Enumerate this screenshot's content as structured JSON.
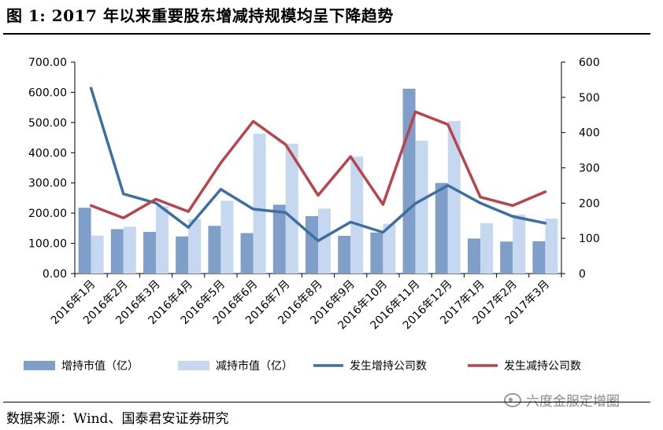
{
  "title": "图 1:  2017 年以来重要股东增减持规模均呈下降趋势",
  "source": "数据来源：Wind、国泰君安证券研究",
  "watermark": "六度金服定增圈",
  "colors": {
    "increase_bar": "#7f9fc9",
    "decrease_bar": "#c6d8ef",
    "increase_line": "#3d6fa1",
    "decrease_line": "#b9444c"
  },
  "chart_data": {
    "type": "bar",
    "categories": [
      "2016年1月",
      "2016年2月",
      "2016年3月",
      "2016年4月",
      "2016年5月",
      "2016年6月",
      "2016年7月",
      "2016年8月",
      "2016年9月",
      "2016年10月",
      "2016年11月",
      "2016年12月",
      "2017年1月",
      "2017年2月",
      "2017年3月"
    ],
    "series": [
      {
        "name": "增持市值（亿）",
        "type": "bar",
        "axis": "left",
        "values": [
          218,
          147,
          138,
          123,
          158,
          134,
          228,
          190,
          125,
          136,
          612,
          300,
          116,
          106,
          107
        ]
      },
      {
        "name": "减持市值（亿）",
        "type": "bar",
        "axis": "left",
        "values": [
          126,
          155,
          223,
          180,
          241,
          463,
          430,
          215,
          387,
          165,
          440,
          505,
          167,
          195,
          182
        ]
      },
      {
        "name": "发生增持公司数",
        "type": "line",
        "axis": "right",
        "values": [
          526,
          226,
          200,
          131,
          239,
          183,
          173,
          93,
          146,
          117,
          199,
          250,
          200,
          162,
          143
        ]
      },
      {
        "name": "发生减持公司数",
        "type": "line",
        "axis": "right",
        "values": [
          193,
          158,
          211,
          176,
          314,
          432,
          366,
          222,
          332,
          196,
          459,
          423,
          217,
          193,
          232
        ]
      }
    ],
    "y_left": {
      "min": 0,
      "max": 700,
      "step": 100,
      "ticks": [
        "0.00",
        "100.00",
        "200.00",
        "300.00",
        "400.00",
        "500.00",
        "600.00",
        "700.00"
      ]
    },
    "y_right": {
      "min": 0,
      "max": 600,
      "step": 100,
      "ticks": [
        "0",
        "100",
        "200",
        "300",
        "400",
        "500",
        "600"
      ]
    },
    "grid": false,
    "legend_position": "bottom"
  }
}
